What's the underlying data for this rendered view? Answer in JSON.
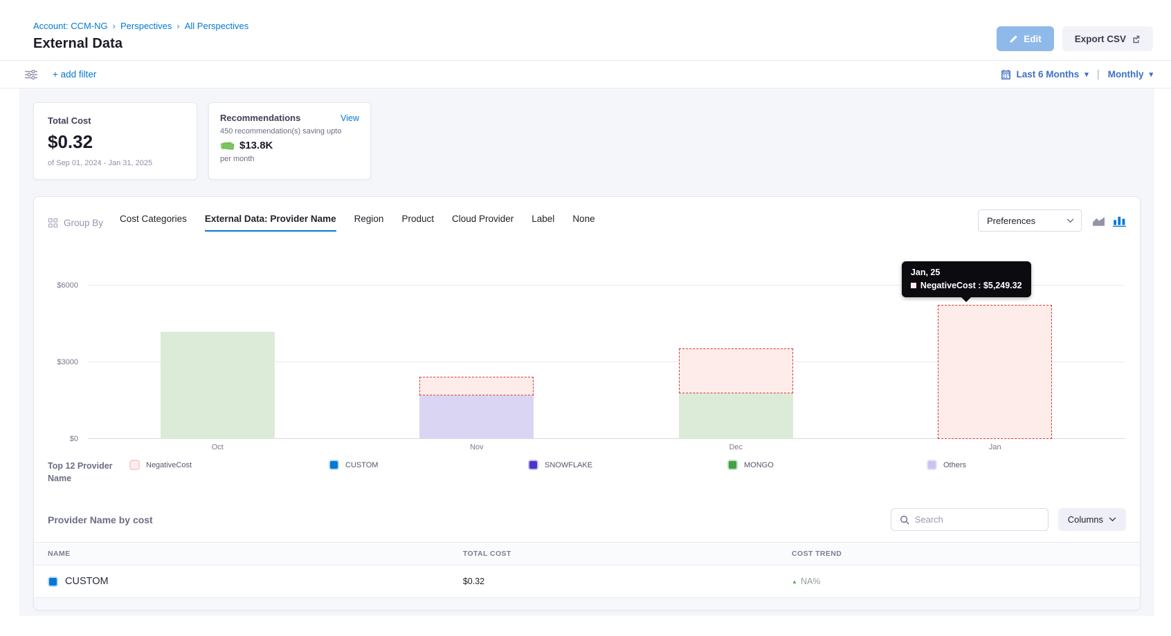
{
  "header": {
    "breadcrumb": [
      "Account: CCM-NG",
      "Perspectives",
      "All Perspectives"
    ],
    "title": "External Data",
    "edit_label": "Edit",
    "export_label": "Export CSV"
  },
  "filterbar": {
    "add_filter_label": "+ add filter",
    "date_range_label": "Last 6 Months",
    "granularity_label": "Monthly"
  },
  "summary_cards": {
    "total_cost": {
      "title": "Total Cost",
      "value": "$0.32",
      "period": "of Sep 01, 2024 - Jan 31, 2025"
    },
    "recommendations": {
      "title": "Recommendations",
      "view_label": "View",
      "subtitle": "450 recommendation(s) saving upto",
      "savings": "$13.8K",
      "per_label": "per month"
    }
  },
  "group_by": {
    "label": "Group By",
    "tabs": [
      "Cost Categories",
      "External Data: Provider Name",
      "Region",
      "Product",
      "Cloud Provider",
      "Label",
      "None"
    ],
    "active_tab": "External Data: Provider Name",
    "preferences_label": "Preferences"
  },
  "chart_data": {
    "type": "bar",
    "stacked": true,
    "categories": [
      "Oct",
      "Nov",
      "Dec",
      "Jan"
    ],
    "series": [
      {
        "name": "MONGO",
        "values": [
          4200,
          0,
          1780,
          0
        ],
        "color": "#dcebd8"
      },
      {
        "name": "Others",
        "values": [
          0,
          1700,
          0,
          0
        ],
        "color": "#dad5f3"
      },
      {
        "name": "NegativeCost",
        "values": [
          0,
          730,
          1750,
          5249.32
        ],
        "color": "#fdecea",
        "border": "#d9392f",
        "dashed": true
      }
    ],
    "ylim": [
      0,
      6000
    ],
    "yticks": [
      {
        "label": "$0",
        "value": 0
      },
      {
        "label": "$3000",
        "value": 3000
      },
      {
        "label": "$6000",
        "value": 6000
      }
    ],
    "grid": true,
    "legend_position": "bottom"
  },
  "tooltip": {
    "title": "Jan, 25",
    "series": "NegativeCost",
    "value": "$5,249.32",
    "text": "NegativeCost : $5,249.32"
  },
  "legend": {
    "title": "Top 12 Provider Name",
    "items": [
      {
        "label": "NegativeCost",
        "fill": "#fdeeec",
        "border": "#f1d4d0"
      },
      {
        "label": "CUSTOM",
        "fill": "#0278d5",
        "border": "#bcdaf3"
      },
      {
        "label": "SNOWFLAKE",
        "fill": "#4735cd",
        "border": "#c3bdf2"
      },
      {
        "label": "MONGO",
        "fill": "#42a147",
        "border": "#c0e0c1"
      },
      {
        "label": "Others",
        "fill": "#c9c4f1",
        "border": "#e5e2fa"
      }
    ]
  },
  "table": {
    "section_title": "Provider Name by cost",
    "search_placeholder": "Search",
    "columns_label": "Columns",
    "headers": [
      "NAME",
      "TOTAL COST",
      "COST TREND"
    ],
    "rows": [
      {
        "name": "CUSTOM",
        "swatch_color": "#0278d5",
        "total_cost": "$0.32",
        "trend": "NA%",
        "trend_direction": "up"
      }
    ]
  },
  "colors": {
    "primary_blue": "#0278d5",
    "date_blue": "#3d70c6",
    "negative_dash": "#d9392f",
    "tooltip_bg": "#0b0b10"
  }
}
